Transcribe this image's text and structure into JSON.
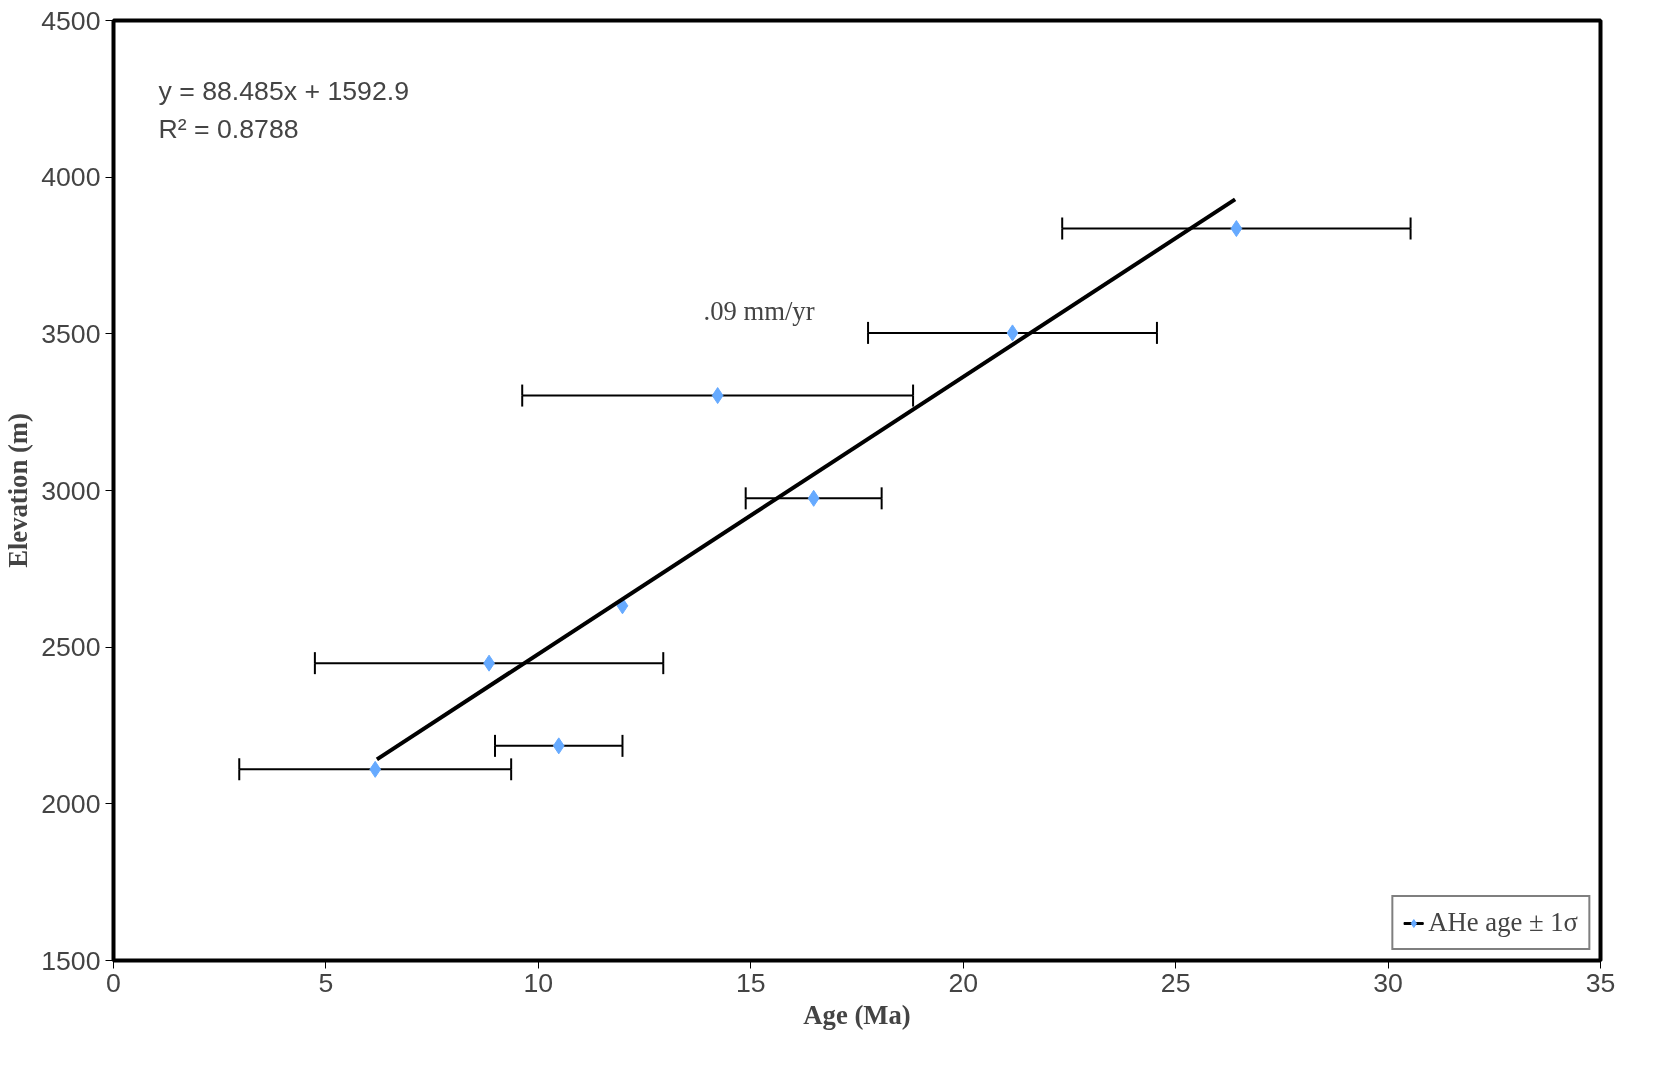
{
  "chart_data": {
    "type": "scatter",
    "xlabel": "Age (Ma)",
    "ylabel": "Elevation (m)",
    "xlim": [
      0,
      35
    ],
    "ylim": [
      1500,
      4500
    ],
    "xticks": [
      0,
      5,
      10,
      15,
      20,
      25,
      30,
      35
    ],
    "yticks": [
      1500,
      2000,
      2500,
      3000,
      3500,
      4000,
      4500
    ],
    "grid": false,
    "legend": "bottom right",
    "series": [
      {
        "name": "AHe age ± 1σ",
        "marker": "diamond",
        "color": "#66aaff",
        "x": [
          6.16,
          8.84,
          10.48,
          11.98,
          14.22,
          16.48,
          21.16,
          26.43
        ],
        "values": [
          2110,
          2449,
          2185,
          2632,
          3303,
          2975,
          3503,
          3836
        ],
        "xerrors": [
          3.2,
          4.1,
          1.5,
          null,
          4.6,
          1.6,
          3.4,
          4.1
        ]
      },
      {
        "type": "line",
        "color": "#000000",
        "x": [
          6.2,
          26.4
        ],
        "values": [
          2142,
          3929
        ],
        "marker": "none"
      }
    ],
    "annotations": [
      "y = 88.485x + 1592.9",
      "R² = 0.8788",
      ".09 mm/yr"
    ]
  }
}
